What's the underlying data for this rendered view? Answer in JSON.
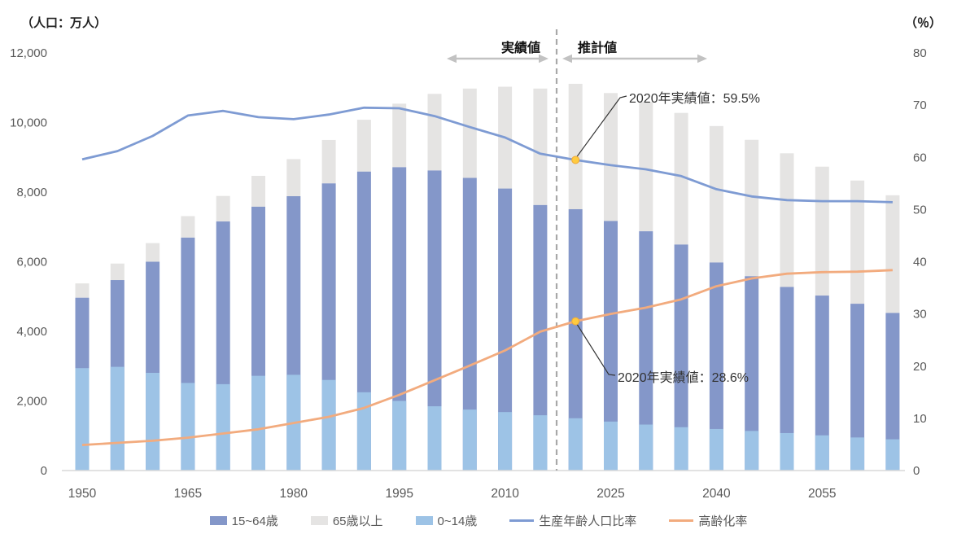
{
  "axes": {
    "left_title": "（人口：万人）",
    "right_title": "（％）"
  },
  "annotations": {
    "actual_label": "実績値",
    "projection_label": "推計値",
    "callouts": [
      {
        "text": "2020年実績値：59.5%",
        "year": "2020",
        "series": "生産年齢人口比率",
        "value": 59.5
      },
      {
        "text": "2020年実績値：28.6%",
        "year": "2020",
        "series": "高齢化率",
        "value": 28.6
      }
    ]
  },
  "legend": {
    "items": [
      {
        "label": "15~64歳",
        "shape": "bar",
        "color": "#8497c9"
      },
      {
        "label": "65歳以上",
        "shape": "bar",
        "color": "#e5e4e3"
      },
      {
        "label": "0~14歳",
        "shape": "bar",
        "color": "#9dc3e6"
      },
      {
        "label": "生産年齢人口比率",
        "shape": "line",
        "color": "#7e9bd3"
      },
      {
        "label": "高齢化率",
        "shape": "line",
        "color": "#f2ab7e"
      }
    ]
  },
  "colors": {
    "bar_15_64": "#8497c9",
    "bar_65_plus": "#e5e4e3",
    "bar_0_14": "#9dc3e6",
    "line_working": "#7e9bd3",
    "line_aging": "#f2ab7e",
    "marker": "#ffcb3f",
    "marker_edge": "#efaa3a",
    "divider": "#a8a8a8",
    "arrow": "#c2c2c2",
    "tick_text": "#595959",
    "axis_line": "#d9d9d9",
    "leader": "#333333"
  },
  "chart_data": {
    "type": "combo: stacked bar (15~64歳 + 65歳以上) with 0~14歳 bar overlaid from zero, plus 2 lines on right axis",
    "categories": [
      "1950",
      "1955",
      "1960",
      "1965",
      "1970",
      "1975",
      "1980",
      "1985",
      "1990",
      "1995",
      "2000",
      "2005",
      "2010",
      "2015",
      "2020",
      "2025",
      "2030",
      "2035",
      "2040",
      "2045",
      "2050",
      "2055",
      "2060",
      "2065"
    ],
    "x_ticks": [
      {
        "label": "1950",
        "index": 0
      },
      {
        "label": "1965",
        "index": 3
      },
      {
        "label": "1980",
        "index": 6
      },
      {
        "label": "1995",
        "index": 9
      },
      {
        "label": "2010",
        "index": 12
      },
      {
        "label": "2025",
        "index": 15
      },
      {
        "label": "2040",
        "index": 18
      },
      {
        "label": "2055",
        "index": 21
      }
    ],
    "left_axis": {
      "title": "（人口：万人）",
      "min": 0,
      "max": 12000,
      "tick_step": 2000,
      "tick_labels": [
        "0",
        "2,000",
        "4,000",
        "6,000",
        "8,000",
        "10,000",
        "12,000"
      ]
    },
    "right_axis": {
      "title": "（％）",
      "min": 0,
      "max": 80,
      "tick_step": 10,
      "tick_labels": [
        "0",
        "10",
        "20",
        "30",
        "40",
        "50",
        "60",
        "70",
        "80"
      ]
    },
    "divider_between": [
      "2015",
      "2020"
    ],
    "grid": "off",
    "legend_position": "bottom",
    "series": [
      {
        "name": "15~64歳",
        "type": "bar",
        "axis": "left",
        "role": "stack-base",
        "values": [
          4966,
          5473,
          6000,
          6693,
          7157,
          7581,
          7883,
          8251,
          8590,
          8716,
          8622,
          8409,
          8103,
          7629,
          7509,
          7170,
          6875,
          6494,
          5978,
          5584,
          5275,
          5028,
          4793,
          4529
        ]
      },
      {
        "name": "65歳以上",
        "type": "bar",
        "axis": "left",
        "role": "stack-top",
        "values": [
          411,
          475,
          535,
          618,
          733,
          887,
          1065,
          1247,
          1489,
          1826,
          2201,
          2567,
          2925,
          3347,
          3603,
          3677,
          3716,
          3782,
          3921,
          3919,
          3841,
          3704,
          3540,
          3381
        ]
      },
      {
        "name": "0~14歳",
        "type": "bar",
        "axis": "left",
        "role": "overlay-front",
        "values": [
          2943,
          2980,
          2807,
          2517,
          2482,
          2722,
          2751,
          2603,
          2249,
          2001,
          1847,
          1752,
          1680,
          1589,
          1503,
          1407,
          1321,
          1246,
          1194,
          1138,
          1077,
          1012,
          951,
          898
        ]
      },
      {
        "name": "生産年齢人口比率",
        "type": "line",
        "axis": "right",
        "values": [
          59.6,
          61.2,
          64.1,
          68.0,
          68.9,
          67.7,
          67.3,
          68.2,
          69.5,
          69.4,
          67.9,
          65.8,
          63.8,
          60.7,
          59.5,
          58.5,
          57.7,
          56.4,
          53.9,
          52.5,
          51.8,
          51.6,
          51.6,
          51.4
        ]
      },
      {
        "name": "高齢化率",
        "type": "line",
        "axis": "right",
        "values": [
          4.9,
          5.3,
          5.7,
          6.3,
          7.1,
          7.9,
          9.1,
          10.3,
          12.0,
          14.5,
          17.3,
          20.1,
          23.0,
          26.6,
          28.6,
          30.0,
          31.2,
          32.8,
          35.3,
          36.8,
          37.7,
          38.0,
          38.1,
          38.4
        ]
      }
    ]
  }
}
